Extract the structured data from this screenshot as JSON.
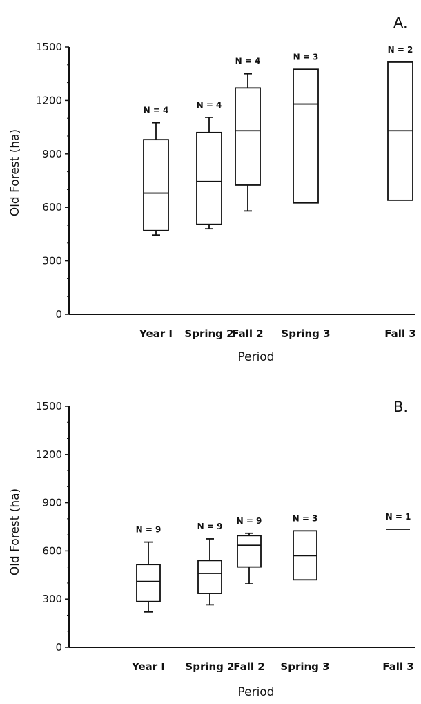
{
  "chart_data": [
    {
      "type": "box",
      "panel_label": "A.",
      "xlabel": "Period",
      "ylabel": "Old Forest (ha)",
      "ylim": [
        0,
        1500
      ],
      "yticks": [
        "0",
        "300",
        "600",
        "900",
        "1200",
        "1500"
      ],
      "categories": [
        "Year I",
        "Spring 2",
        "Fall 2",
        "Spring 3",
        "Fall 3"
      ],
      "boxes": [
        {
          "n_label": "N = 4",
          "whisker_low": 445,
          "q1": 470,
          "median": 680,
          "q3": 980,
          "whisker_high": 1075
        },
        {
          "n_label": "N = 4",
          "whisker_low": 480,
          "q1": 505,
          "median": 745,
          "q3": 1020,
          "whisker_high": 1105
        },
        {
          "n_label": "N = 4",
          "whisker_low": 580,
          "q1": 725,
          "median": 1030,
          "q3": 1270,
          "whisker_high": 1350
        },
        {
          "n_label": "N = 3",
          "whisker_low": 625,
          "q1": 625,
          "median": 1180,
          "q3": 1375,
          "whisker_high": 1375
        },
        {
          "n_label": "N = 2",
          "whisker_low": 640,
          "q1": 640,
          "median": 1030,
          "q3": 1415,
          "whisker_high": 1415
        }
      ]
    },
    {
      "type": "box",
      "panel_label": "B.",
      "xlabel": "Period",
      "ylabel": "Old Forest (ha)",
      "ylim": [
        0,
        1500
      ],
      "yticks": [
        "0",
        "300",
        "600",
        "900",
        "1200",
        "1500"
      ],
      "categories": [
        "Year I",
        "Spring 2",
        "Fall 2",
        "Spring 3",
        "Fall 3"
      ],
      "boxes": [
        {
          "n_label": "N = 9",
          "whisker_low": 220,
          "q1": 285,
          "median": 410,
          "q3": 515,
          "whisker_high": 655
        },
        {
          "n_label": "N = 9",
          "whisker_low": 265,
          "q1": 335,
          "median": 460,
          "q3": 540,
          "whisker_high": 675
        },
        {
          "n_label": "N = 9",
          "whisker_low": 395,
          "q1": 500,
          "median": 635,
          "q3": 695,
          "whisker_high": 710
        },
        {
          "n_label": "N = 3",
          "whisker_low": 420,
          "q1": 420,
          "median": 570,
          "q3": 725,
          "whisker_high": 725
        },
        {
          "n_label": "N = 1",
          "whisker_low": 735,
          "q1": 735,
          "median": 735,
          "q3": 735,
          "whisker_high": 735
        }
      ]
    }
  ]
}
